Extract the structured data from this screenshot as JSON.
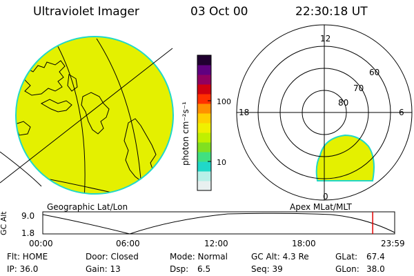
{
  "header": {
    "instrument": "Ultraviolet Imager",
    "date": "03 Oct 00",
    "time": "22:30:18 UT"
  },
  "left_panel": {
    "label": "Geographic Lat/Lon"
  },
  "right_panel": {
    "label": "Apex MLat/MLT",
    "mlt_labels": [
      "12",
      "18",
      "6",
      "0"
    ],
    "mlat_labels": [
      "60",
      "70",
      "80"
    ]
  },
  "colorbar": {
    "unit": "photon cm⁻²s⁻¹",
    "ticks": [
      "100",
      "10"
    ],
    "colors": [
      "#e8f0f0",
      "#b8f0e8",
      "#20d8c8",
      "#40e080",
      "#80e020",
      "#c0f000",
      "#f0f000",
      "#ffd000",
      "#ff9000",
      "#ff3000",
      "#d00010",
      "#900060",
      "#600080",
      "#200030"
    ]
  },
  "altitude_plot": {
    "axis_label": "GC Alt",
    "y_ticks": [
      "9.0",
      "1.8"
    ],
    "x_ticks": [
      "00:00",
      "06:00",
      "12:00",
      "18:00",
      "23:59"
    ],
    "current_marker_hour": 22.5
  },
  "footer": {
    "flt": "Flt: HOME",
    "ip": "IP: 36.0",
    "door": "Door: Closed",
    "gain": "Gain: 13",
    "mode": "Mode: Normal",
    "dsp_label": "Dsp:",
    "dsp_value": "6.5",
    "gcalt": "GC Alt: 4.3 Re",
    "seq": "Seq: 39",
    "glat_label": "GLat:",
    "glat_value": "67.4",
    "glon_label": "GLon:",
    "glon_value": "38.0"
  },
  "style": {
    "fill": "#e4f000",
    "edge": "#20d8c8"
  }
}
